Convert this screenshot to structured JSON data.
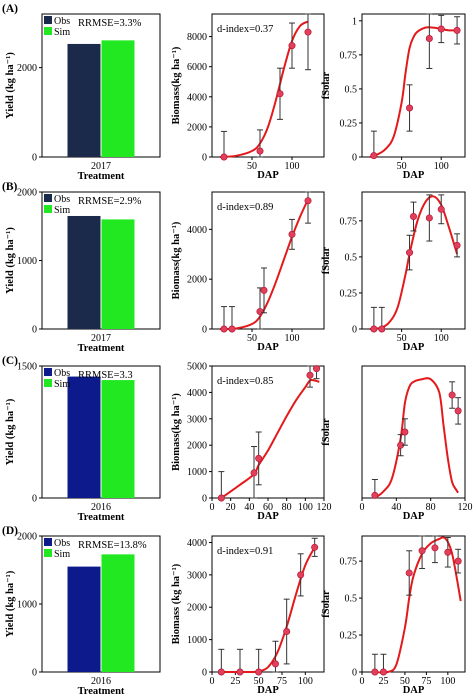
{
  "colors": {
    "obs": "#1b2a4a",
    "sim": "#22e822",
    "obs_c": "#0d1a8c",
    "line": "#e31a1c",
    "point": "#e0405a",
    "axis": "#000000"
  },
  "chart_data": [
    {
      "panel": "A",
      "type": "bar",
      "label": "(A)",
      "ylabel": "Yield (kg ha⁻¹)",
      "categories": [
        "2017"
      ],
      "xlabel": "Treatment",
      "series": [
        {
          "name": "Obs",
          "values": [
            2530
          ]
        },
        {
          "name": "Sim",
          "values": [
            2610
          ]
        }
      ],
      "ylim": [
        0,
        3200
      ],
      "yticks": [
        0,
        2000
      ],
      "annotation": "RRMSE=3.3%",
      "obs_color": "obs"
    },
    {
      "panel": "A",
      "type": "line",
      "xlabel": "DAP",
      "ylabel": "Biomass(kg ha⁻¹)",
      "xlim": [
        0,
        140
      ],
      "ylim": [
        0,
        9500
      ],
      "xticks": [
        50,
        100
      ],
      "yticks": [
        0,
        2000,
        4000,
        6000,
        8000
      ],
      "annotation": "d-index=0.37",
      "points": {
        "x": [
          15,
          60,
          85,
          100,
          120
        ],
        "y": [
          0,
          400,
          4200,
          7400,
          8300
        ],
        "err": [
          1700,
          1400,
          1700,
          1500,
          2500
        ]
      },
      "curve": {
        "x": [
          10,
          30,
          50,
          60,
          70,
          80,
          90,
          100,
          110,
          120
        ],
        "y": [
          0,
          80,
          400,
          900,
          2000,
          3800,
          5900,
          7700,
          8700,
          9000
        ]
      }
    },
    {
      "panel": "A",
      "type": "line",
      "xlabel": "DAP",
      "ylabel": "fSolar",
      "xlim": [
        0,
        130
      ],
      "ylim": [
        0,
        1.05
      ],
      "xticks": [
        50,
        100
      ],
      "yticks": [
        0,
        0.25,
        0.5,
        0.75,
        1
      ],
      "ytick_labels": [
        "0",
        "0.25",
        "0.5",
        "0.75",
        "1"
      ],
      "points": {
        "x": [
          15,
          60,
          85,
          100,
          120
        ],
        "y": [
          0.01,
          0.36,
          0.87,
          0.94,
          0.93
        ],
        "err": [
          0.18,
          0.17,
          0.22,
          0.1,
          0.1
        ]
      },
      "curve": {
        "x": [
          10,
          20,
          30,
          40,
          50,
          55,
          60,
          65,
          70,
          80,
          90,
          100,
          110,
          120
        ],
        "y": [
          0,
          0.02,
          0.06,
          0.15,
          0.4,
          0.62,
          0.8,
          0.88,
          0.92,
          0.95,
          0.95,
          0.94,
          0.93,
          0.93
        ]
      }
    },
    {
      "panel": "B",
      "type": "bar",
      "label": "(B)",
      "ylabel": "Yield (kg ha⁻¹)",
      "categories": [
        "2017"
      ],
      "xlabel": "Treatment",
      "series": [
        {
          "name": "Obs",
          "values": [
            1650
          ]
        },
        {
          "name": "Sim",
          "values": [
            1600
          ]
        }
      ],
      "ylim": [
        0,
        2000
      ],
      "yticks": [
        0,
        1000,
        2000
      ],
      "annotation": "RRMSE=2.9%",
      "obs_color": "obs"
    },
    {
      "panel": "B",
      "type": "line",
      "xlabel": "DAP",
      "ylabel": "Biomass(kg ha⁻¹)",
      "xlim": [
        0,
        140
      ],
      "ylim": [
        0,
        5500
      ],
      "xticks": [
        50,
        100
      ],
      "yticks": [
        0,
        2000,
        4000
      ],
      "annotation": "d-index=0.89",
      "points": {
        "x": [
          15,
          25,
          60,
          65,
          100,
          120
        ],
        "y": [
          0,
          0,
          700,
          1550,
          3800,
          5150
        ],
        "err": [
          900,
          900,
          950,
          900,
          600,
          900
        ]
      },
      "curve": {
        "x": [
          10,
          30,
          50,
          60,
          70,
          80,
          90,
          100,
          110,
          120
        ],
        "y": [
          0,
          20,
          200,
          500,
          1100,
          1900,
          2800,
          3700,
          4500,
          5200
        ]
      }
    },
    {
      "panel": "B",
      "type": "line",
      "xlabel": "DAP",
      "ylabel": "fSolar",
      "xlim": [
        0,
        130
      ],
      "ylim": [
        0,
        0.95
      ],
      "xticks": [
        50,
        100
      ],
      "yticks": [
        0,
        0.25,
        0.5,
        0.75
      ],
      "ytick_labels": [
        "0",
        "0.25",
        "0.5",
        "0.75"
      ],
      "points": {
        "x": [
          15,
          25,
          60,
          65,
          85,
          100,
          120
        ],
        "y": [
          0,
          0,
          0.53,
          0.78,
          0.77,
          0.83,
          0.58
        ],
        "err": [
          0.15,
          0.15,
          0.12,
          0.1,
          0.16,
          0.1,
          0.08
        ]
      },
      "curve": {
        "x": [
          10,
          25,
          35,
          45,
          55,
          60,
          70,
          80,
          90,
          100,
          110,
          120
        ],
        "y": [
          0,
          0.01,
          0.05,
          0.15,
          0.38,
          0.52,
          0.75,
          0.88,
          0.92,
          0.86,
          0.7,
          0.52
        ]
      }
    },
    {
      "panel": "C",
      "type": "bar",
      "label": "(C)",
      "ylabel": "Yield (kg ha⁻¹)",
      "categories": [
        "2016"
      ],
      "xlabel": "Treatment",
      "series": [
        {
          "name": "Obs",
          "values": [
            1380
          ]
        },
        {
          "name": "Sim",
          "values": [
            1340
          ]
        }
      ],
      "ylim": [
        0,
        1500
      ],
      "yticks": [
        0,
        1500
      ],
      "annotation": "RRMSE=3.3",
      "obs_color": "obs_c"
    },
    {
      "panel": "C",
      "type": "line",
      "xlabel": "DAP",
      "ylabel": "Biomass(kg ha⁻¹)",
      "xlim": [
        0,
        120
      ],
      "ylim": [
        0,
        5000
      ],
      "xticks": [
        0,
        20,
        40,
        60,
        80,
        100,
        120
      ],
      "yticks": [
        0,
        1000,
        2000,
        3000,
        4000,
        5000
      ],
      "annotation": "d-index=0.85",
      "points": {
        "x": [
          10,
          45,
          50,
          105,
          112
        ],
        "y": [
          0,
          950,
          1500,
          4650,
          4900
        ],
        "err": [
          1000,
          1000,
          1000,
          450,
          380
        ]
      },
      "curve": {
        "x": [
          10,
          30,
          45,
          50,
          60,
          70,
          80,
          90,
          100,
          105,
          110,
          115
        ],
        "y": [
          0,
          500,
          900,
          1250,
          1800,
          2450,
          3100,
          3700,
          4200,
          4450,
          4450,
          4400
        ]
      }
    },
    {
      "panel": "C",
      "type": "line",
      "xlabel": "DAP",
      "ylabel": "fSolar",
      "xlim": [
        0,
        120
      ],
      "ylim": [
        0,
        1.0
      ],
      "xticks": [
        0,
        40,
        80,
        120
      ],
      "yticks": [],
      "points": {
        "x": [
          15,
          45,
          50,
          105,
          112
        ],
        "y": [
          0.02,
          0.4,
          0.5,
          0.78,
          0.66
        ],
        "err": [
          0.12,
          0.08,
          0.1,
          0.1,
          0.1
        ]
      },
      "curve": {
        "x": [
          15,
          25,
          35,
          45,
          50,
          55,
          60,
          70,
          80,
          90,
          95,
          100,
          105,
          110,
          112
        ],
        "y": [
          0,
          0.05,
          0.15,
          0.45,
          0.72,
          0.84,
          0.88,
          0.9,
          0.9,
          0.8,
          0.55,
          0.3,
          0.12,
          0.06,
          0.04
        ]
      }
    },
    {
      "panel": "D",
      "type": "bar",
      "label": "(D)",
      "ylabel": "Yield (kg ha⁻¹)",
      "categories": [
        "2016"
      ],
      "xlabel": "Treatment",
      "series": [
        {
          "name": "Obs",
          "values": [
            1550
          ]
        },
        {
          "name": "Sim",
          "values": [
            1730
          ]
        }
      ],
      "ylim": [
        0,
        2000
      ],
      "yticks": [
        0,
        1000,
        2000
      ],
      "annotation": "RRMSE=13.8%",
      "obs_color": "obs_c"
    },
    {
      "panel": "D",
      "type": "line",
      "xlabel": "DAP",
      "ylabel": "Biomass (kg ha⁻¹)",
      "xlim": [
        0,
        120
      ],
      "ylim": [
        0,
        4200
      ],
      "xticks": [
        0,
        25,
        50,
        75,
        100
      ],
      "yticks": [
        0,
        1000,
        2000,
        3000,
        4000
      ],
      "annotation": "d-index=0.91",
      "points": {
        "x": [
          10,
          30,
          50,
          68,
          80,
          95,
          110
        ],
        "y": [
          0,
          0,
          0,
          250,
          1250,
          3000,
          3850
        ],
        "err": [
          700,
          700,
          700,
          700,
          1000,
          650,
          280
        ]
      },
      "curve": {
        "x": [
          10,
          40,
          50,
          60,
          70,
          80,
          90,
          100,
          110
        ],
        "y": [
          0,
          0,
          20,
          150,
          600,
          1400,
          2400,
          3300,
          3850
        ]
      }
    },
    {
      "panel": "D",
      "type": "line",
      "xlabel": "DAP",
      "ylabel": "fSolar",
      "xlim": [
        0,
        120
      ],
      "ylim": [
        0,
        0.92
      ],
      "xticks": [
        0,
        25,
        50,
        75,
        100
      ],
      "yticks": [
        0,
        0.25,
        0.5,
        0.75
      ],
      "ytick_labels": [
        "0",
        "0.25",
        "0.5",
        "0.75"
      ],
      "points": {
        "x": [
          15,
          25,
          55,
          70,
          85,
          100,
          112
        ],
        "y": [
          0,
          0,
          0.67,
          0.82,
          0.84,
          0.81,
          0.75
        ],
        "err": [
          0.12,
          0.12,
          0.15,
          0.12,
          0.1,
          0.1,
          0.08
        ]
      },
      "curve": {
        "x": [
          15,
          30,
          40,
          50,
          55,
          60,
          70,
          80,
          90,
          95,
          100,
          105,
          110,
          115
        ],
        "y": [
          0,
          0,
          0.05,
          0.3,
          0.5,
          0.65,
          0.8,
          0.87,
          0.9,
          0.91,
          0.88,
          0.8,
          0.65,
          0.48
        ]
      }
    }
  ]
}
